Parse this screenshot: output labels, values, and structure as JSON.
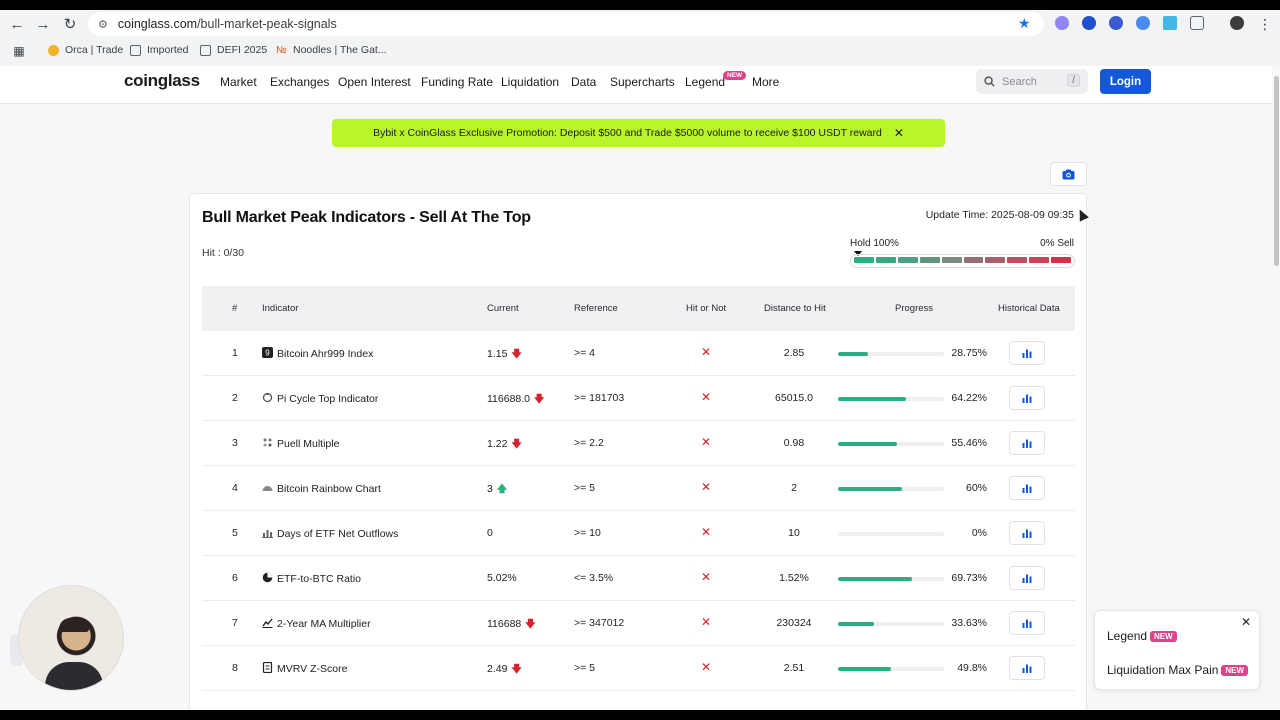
{
  "browser": {
    "url_host": "coinglass.com",
    "url_path": "/bull-market-peak-signals",
    "bookmarks": [
      "Orca | Trade",
      "Imported",
      "DEFI 2025",
      "Noodles | The Gat..."
    ]
  },
  "nav": {
    "logo": "coinglass",
    "items": [
      "Market",
      "Exchanges",
      "Open Interest",
      "Funding Rate",
      "Liquidation",
      "Data",
      "Supercharts",
      "Legend",
      "More"
    ],
    "legend_badge": "NEW",
    "search_placeholder": "Search",
    "search_shortcut": "/",
    "login": "Login"
  },
  "promo": {
    "text": "Bybit x CoinGlass Exclusive Promotion: Deposit $500 and Trade $5000 volume to receive $100 USDT reward",
    "close": "✕"
  },
  "card": {
    "title": "Bull Market Peak Indicators - Sell At The Top",
    "hit": "Hit : 0/30",
    "update_time": "Update Time: 2025-08-09 09:35",
    "hold_label": "Hold 100%",
    "sell_label": "0% Sell",
    "meter_colors": [
      "#2bae84",
      "#3aa882",
      "#4c9f80",
      "#5f957d",
      "#7c8a80",
      "#956f73",
      "#a9606a",
      "#bb4f60",
      "#c84357",
      "#d6304b"
    ],
    "headers": {
      "num": "#",
      "indicator": "Indicator",
      "current": "Current",
      "reference": "Reference",
      "hit": "Hit or Not",
      "distance": "Distance to Hit",
      "progress": "Progress",
      "historical": "Historical Data"
    },
    "rows": [
      {
        "num": "1",
        "icon": "ahr999-icon",
        "name": "Bitcoin Ahr999 Index",
        "current": "1.15",
        "trend": "down",
        "reference": ">= 4",
        "hit": "✕",
        "distance": "2.85",
        "progress": 28.75,
        "progress_label": "28.75%"
      },
      {
        "num": "2",
        "icon": "pi-cycle-icon",
        "name": "Pi Cycle Top Indicator",
        "current": "116688.0",
        "trend": "down",
        "reference": ">= 181703",
        "hit": "✕",
        "distance": "65015.0",
        "progress": 64.22,
        "progress_label": "64.22%"
      },
      {
        "num": "3",
        "icon": "puell-icon",
        "name": "Puell Multiple",
        "current": "1.22",
        "trend": "down",
        "reference": ">= 2.2",
        "hit": "✕",
        "distance": "0.98",
        "progress": 55.46,
        "progress_label": "55.46%"
      },
      {
        "num": "4",
        "icon": "rainbow-icon",
        "name": "Bitcoin Rainbow Chart",
        "current": "3",
        "trend": "up",
        "reference": ">= 5",
        "hit": "✕",
        "distance": "2",
        "progress": 60,
        "progress_label": "60%"
      },
      {
        "num": "5",
        "icon": "etf-outflows-icon",
        "name": "Days of ETF Net Outflows",
        "current": "0",
        "trend": "",
        "reference": ">= 10",
        "hit": "✕",
        "distance": "10",
        "progress": 0,
        "progress_label": "0%"
      },
      {
        "num": "6",
        "icon": "etf-btc-ratio-icon",
        "name": "ETF-to-BTC Ratio",
        "current": "5.02%",
        "trend": "",
        "reference": "<= 3.5%",
        "hit": "✕",
        "distance": "1.52%",
        "progress": 69.73,
        "progress_label": "69.73%"
      },
      {
        "num": "7",
        "icon": "ma-multiplier-icon",
        "name": "2-Year MA Multiplier",
        "current": "116688",
        "trend": "down",
        "reference": ">= 347012",
        "hit": "✕",
        "distance": "230324",
        "progress": 33.63,
        "progress_label": "33.63%"
      },
      {
        "num": "8",
        "icon": "mvrv-icon",
        "name": "MVRV Z-Score",
        "current": "2.49",
        "trend": "down",
        "reference": ">= 5",
        "hit": "✕",
        "distance": "2.51",
        "progress": 49.8,
        "progress_label": "49.8%"
      }
    ]
  },
  "floating": {
    "items": [
      {
        "label": "Legend",
        "badge": "NEW"
      },
      {
        "label": "Liquidation Max Pain",
        "badge": "NEW"
      }
    ]
  }
}
